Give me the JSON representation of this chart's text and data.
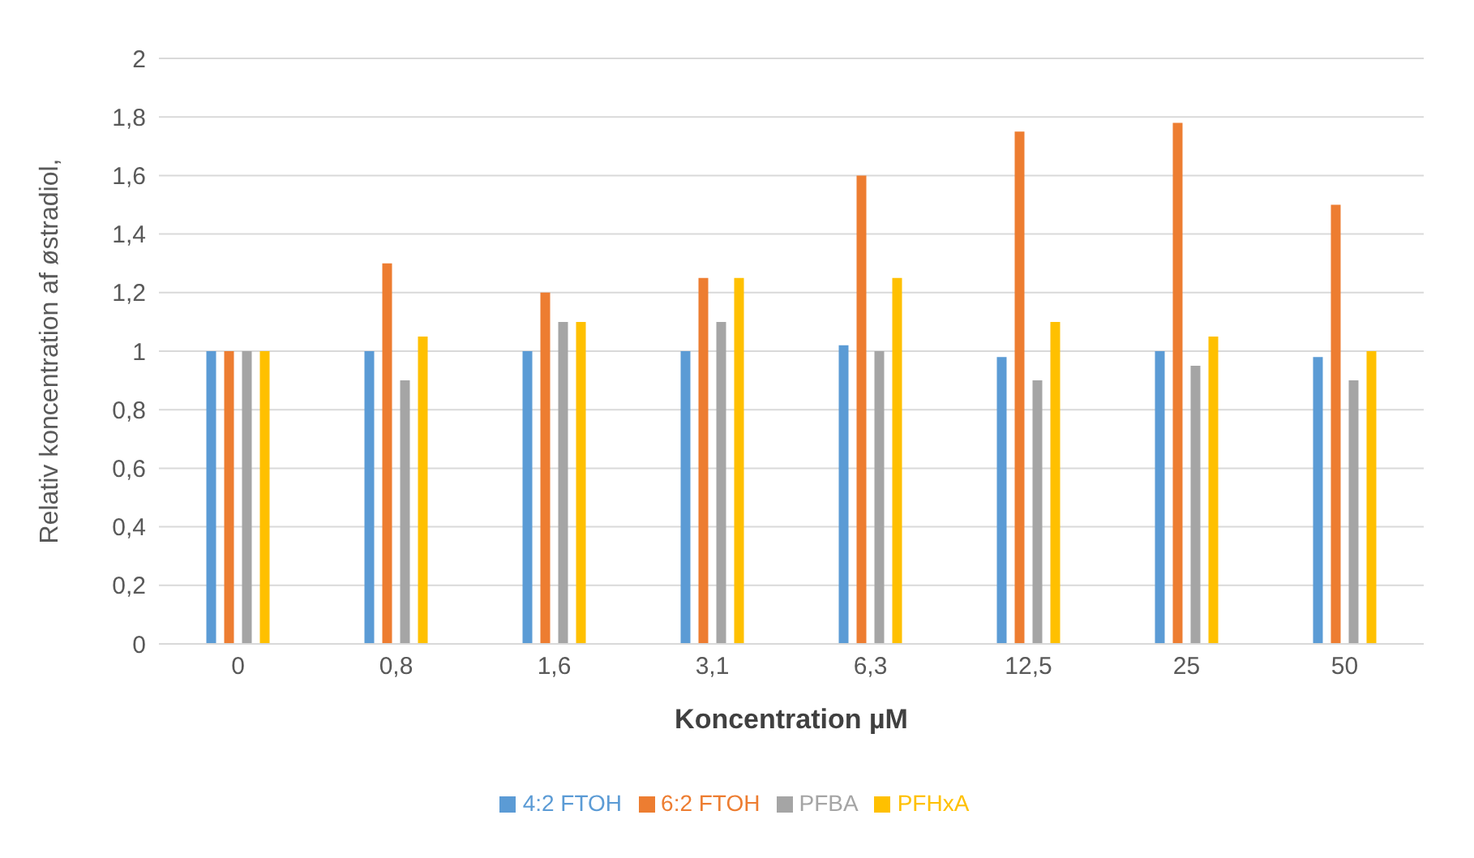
{
  "chart_data": {
    "type": "bar",
    "xlabel": "Koncentration µM",
    "ylabel": "Relativ koncentration af østradiol,",
    "categories": [
      "0",
      "0,8",
      "1,6",
      "3,1",
      "6,3",
      "12,5",
      "25",
      "50"
    ],
    "series": [
      {
        "name": "4:2 FTOH",
        "color": "#5b9bd5",
        "values": [
          1,
          1,
          1,
          1,
          1.02,
          0.98,
          1,
          0.98
        ]
      },
      {
        "name": "6:2 FTOH",
        "color": "#ed7d31",
        "values": [
          1,
          1.3,
          1.2,
          1.25,
          1.6,
          1.75,
          1.78,
          1.5
        ]
      },
      {
        "name": "PFBA",
        "color": "#a5a5a5",
        "values": [
          1,
          0.9,
          1.1,
          1.1,
          1,
          0.9,
          0.95,
          0.9
        ]
      },
      {
        "name": "PFHxA",
        "color": "#ffc000",
        "values": [
          1,
          1.05,
          1.1,
          1.25,
          1.25,
          1.1,
          1.05,
          1
        ]
      }
    ],
    "ylim": [
      0,
      2
    ],
    "yticks": [
      0,
      {
        "value": 0.2,
        "label": "0,2"
      },
      {
        "value": 0.4,
        "label": "0,4"
      },
      {
        "value": 0.6,
        "label": "0,6"
      },
      {
        "value": 0.8,
        "label": "0,8"
      },
      1,
      {
        "value": 1.2,
        "label": "1,2"
      },
      {
        "value": 1.4,
        "label": "1,4"
      },
      {
        "value": 1.6,
        "label": "1,6"
      },
      {
        "value": 1.8,
        "label": "1,8"
      },
      2
    ],
    "grid": "y",
    "legend": "bottom"
  }
}
